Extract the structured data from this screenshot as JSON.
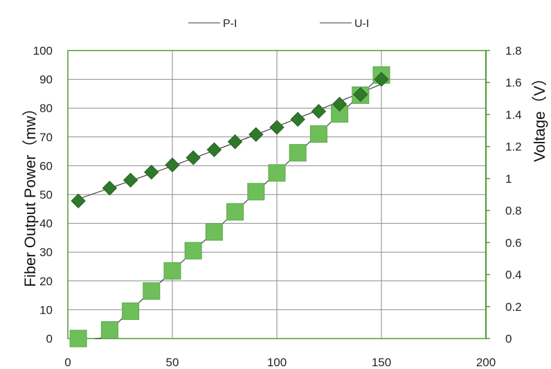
{
  "chart_data": {
    "type": "scatter",
    "x": [
      5,
      20,
      30,
      40,
      50,
      60,
      70,
      80,
      90,
      100,
      110,
      120,
      130,
      140,
      150
    ],
    "series": [
      {
        "name": "P-I",
        "axis": "left",
        "marker": "square",
        "color": "#6ebf5a",
        "values": [
          0,
          3,
          9.5,
          16.5,
          23.5,
          30.5,
          37,
          44,
          51,
          57.5,
          64.5,
          71,
          78,
          84.5,
          91.5
        ]
      },
      {
        "name": "U-I",
        "axis": "right",
        "marker": "diamond",
        "color": "#2f7a2a",
        "values": [
          0.86,
          0.94,
          0.99,
          1.04,
          1.085,
          1.13,
          1.18,
          1.23,
          1.275,
          1.32,
          1.37,
          1.42,
          1.465,
          1.525,
          1.62
        ]
      }
    ],
    "xticks": [
      "0",
      "50",
      "100",
      "150",
      "200"
    ],
    "yticks_left": [
      "0",
      "10",
      "20",
      "30",
      "40",
      "50",
      "60",
      "70",
      "80",
      "90",
      "100"
    ],
    "yticks_right": [
      "0",
      "0.2",
      "0.4",
      "0.6",
      "0.8",
      "1",
      "1.2",
      "1.4",
      "1.6",
      "1.8"
    ],
    "xlim": [
      0,
      200
    ],
    "ylim_left": [
      0,
      100
    ],
    "ylim_right": [
      0,
      1.8
    ],
    "ylabel_left": "Fiber Output Power（mw）",
    "ylabel_right": "Voltage（V）",
    "xlabel": "",
    "title": "",
    "grid": true,
    "legend_position": "top-center",
    "frame_color": "#4a9a2e"
  }
}
